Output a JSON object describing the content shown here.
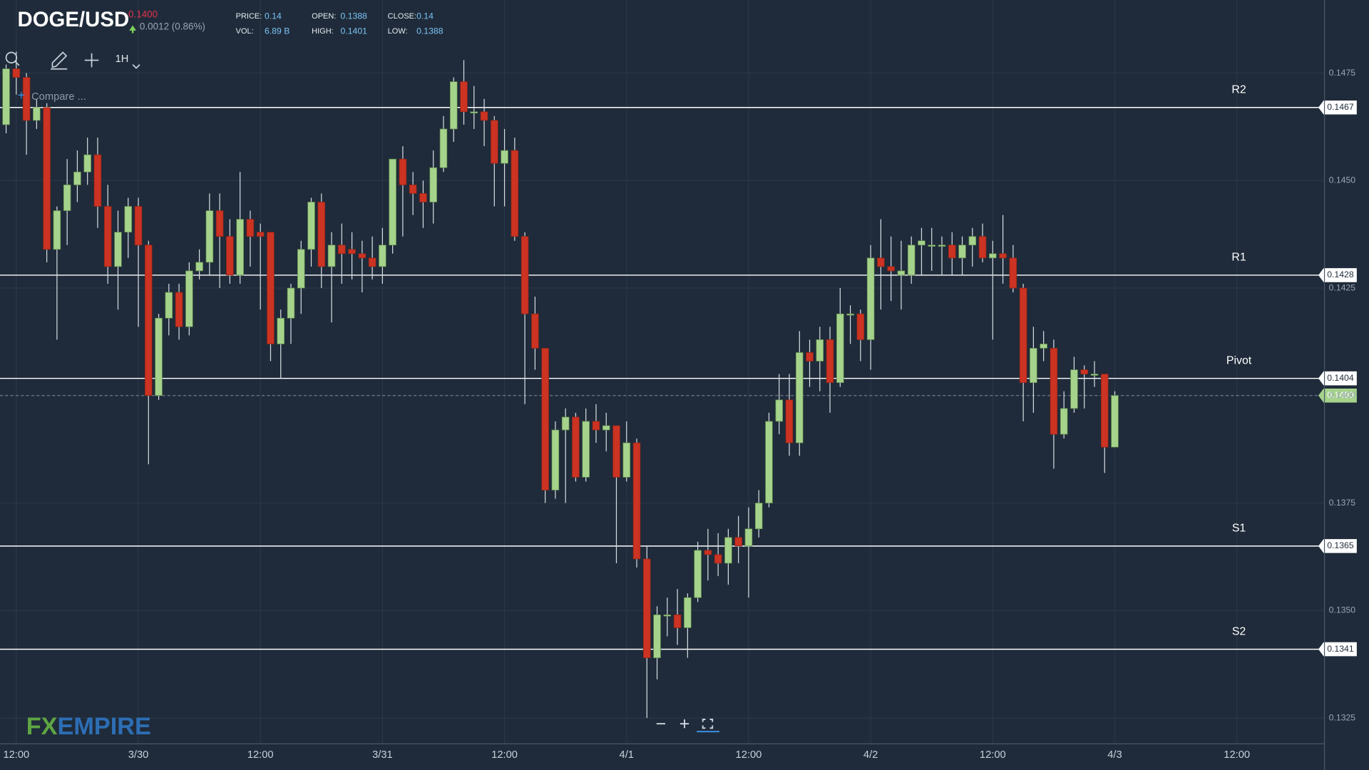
{
  "chart_data": {
    "type": "candlestick",
    "title": "DOGE/USD",
    "header": {
      "price": "0.1400",
      "change": "0.0012 (0.86%)",
      "stats": [
        {
          "label": "PRICE:",
          "value": "0.14"
        },
        {
          "label": "OPEN:",
          "value": "0.1388"
        },
        {
          "label": "CLOSE:",
          "value": "0.14"
        },
        {
          "label": "VOL:",
          "value": "6.89 B"
        },
        {
          "label": "HIGH:",
          "value": "0.1401"
        },
        {
          "label": "LOW:",
          "value": "0.1388"
        }
      ]
    },
    "toolbar": {
      "interval": "1H",
      "compare": "Compare ..."
    },
    "logo": {
      "first": "FX",
      "second": "EMPIRE"
    },
    "up_color": "#a6d38c",
    "down_color": "#cc3322",
    "categories": [
      null,
      "12:00",
      null,
      null,
      null,
      null,
      null,
      null,
      null,
      null,
      null,
      null,
      null,
      "3/30",
      null,
      null,
      null,
      null,
      null,
      null,
      null,
      null,
      null,
      null,
      null,
      "12:00",
      null,
      null,
      null,
      null,
      null,
      null,
      null,
      null,
      null,
      null,
      null,
      "3/31",
      null,
      null,
      null,
      null,
      null,
      null,
      null,
      null,
      null,
      null,
      null,
      "12:00",
      null,
      null,
      null,
      null,
      null,
      null,
      null,
      null,
      null,
      null,
      null,
      "4/1",
      null,
      null,
      null,
      null,
      null,
      null,
      null,
      null,
      null,
      null,
      null,
      "12:00",
      null,
      null,
      null,
      null,
      null,
      null,
      null,
      null,
      null,
      null,
      null,
      "4/2",
      null,
      null,
      null,
      null,
      null,
      null,
      null,
      null,
      null,
      null,
      null,
      "12:00",
      null,
      null,
      null,
      null,
      null,
      null,
      null,
      null,
      null,
      null,
      null,
      "4/3",
      null,
      null,
      null,
      null,
      null,
      null,
      null,
      null,
      null,
      null,
      null,
      "12:00"
    ],
    "open": [
      0.1463,
      0.1476,
      0.1474,
      0.1464,
      0.1467,
      0.1434,
      0.1443,
      0.1449,
      0.1452,
      0.1456,
      0.1444,
      0.143,
      0.1438,
      0.1444,
      0.1435,
      0.14,
      0.1418,
      0.1424,
      0.1416,
      0.1429,
      0.1431,
      0.1443,
      0.1437,
      0.1428,
      0.1441,
      0.1438,
      0.1438,
      0.1412,
      0.1418,
      0.1425,
      0.1434,
      0.1445,
      0.143,
      0.1435,
      0.1434,
      0.1433,
      0.1432,
      0.143,
      0.1435,
      0.1455,
      0.1449,
      0.1447,
      0.1445,
      0.1453,
      0.1462,
      0.1473,
      0.1466,
      0.1466,
      0.1464,
      0.1454,
      0.1457,
      0.1437,
      0.1419,
      0.1411,
      0.1378,
      0.1392,
      0.1395,
      0.1381,
      0.1394,
      0.1392,
      0.1393,
      0.1381,
      0.1389,
      0.1362,
      0.1339,
      0.1349,
      0.1349,
      0.1346,
      0.1353,
      0.1364,
      0.1363,
      0.1361,
      0.1367,
      0.1365,
      0.1369,
      0.1375,
      0.1394,
      0.1399,
      0.1389,
      0.141,
      0.1408,
      0.1413,
      0.1403,
      0.1419,
      0.1419,
      0.1413,
      0.1432,
      0.143,
      0.1428,
      0.1428,
      0.1435,
      0.1435,
      0.1435,
      0.1435,
      0.1432,
      0.1435,
      0.1437,
      0.1432,
      0.1433,
      0.1432,
      0.1425,
      0.1403,
      0.1411,
      0.1411,
      0.1391,
      0.1397,
      0.1406,
      0.1405,
      0.1405,
      0.1388,
      null,
      null,
      null,
      null,
      null,
      null,
      null,
      null,
      null,
      null,
      null,
      null
    ],
    "high": [
      0.1477,
      0.148,
      0.1475,
      0.1469,
      0.1468,
      0.1444,
      0.1455,
      0.1457,
      0.146,
      0.146,
      0.1449,
      0.1443,
      0.1446,
      0.1446,
      0.1436,
      0.1419,
      0.1426,
      0.1426,
      0.1431,
      0.1434,
      0.1447,
      0.1447,
      0.1441,
      0.1452,
      0.1443,
      0.144,
      0.1438,
      0.142,
      0.1426,
      0.1436,
      0.1446,
      0.1447,
      0.1438,
      0.144,
      0.1438,
      0.1436,
      0.1437,
      0.1439,
      0.1455,
      0.1458,
      0.1452,
      0.145,
      0.1457,
      0.1465,
      0.1474,
      0.1478,
      0.1472,
      0.1469,
      0.1465,
      0.1462,
      0.146,
      0.1438,
      0.1423,
      0.1411,
      0.1394,
      0.1397,
      0.1396,
      0.1397,
      0.1398,
      0.1396,
      0.1393,
      0.1394,
      0.139,
      0.1365,
      0.1351,
      0.1353,
      0.1355,
      0.1354,
      0.1366,
      0.1369,
      0.1368,
      0.1369,
      0.1372,
      0.1374,
      0.1378,
      0.1396,
      0.1405,
      0.1405,
      0.1415,
      0.1413,
      0.1416,
      0.1416,
      0.1425,
      0.1421,
      0.142,
      0.1435,
      0.1441,
      0.1437,
      0.1436,
      0.1437,
      0.1439,
      0.1439,
      0.1437,
      0.1438,
      0.1437,
      0.1439,
      0.144,
      0.1436,
      0.1442,
      0.1435,
      0.1426,
      0.1416,
      0.1415,
      0.1413,
      0.1401,
      0.1409,
      0.1407,
      0.1408,
      0.1405,
      0.1401,
      null,
      null,
      null,
      null,
      null,
      null,
      null,
      null,
      null,
      null,
      null,
      null
    ],
    "low": [
      0.1461,
      0.147,
      0.1456,
      0.1462,
      0.1431,
      0.1413,
      0.1435,
      0.1445,
      0.1449,
      0.1439,
      0.1426,
      0.142,
      0.1432,
      0.1416,
      0.1384,
      0.1399,
      0.1414,
      0.1413,
      0.1414,
      0.1427,
      0.1428,
      0.1425,
      0.1426,
      0.1426,
      0.143,
      0.142,
      0.1408,
      0.1404,
      0.1412,
      0.1419,
      0.143,
      0.1425,
      0.1417,
      0.1426,
      0.1427,
      0.1424,
      0.1427,
      0.1426,
      0.1433,
      0.1437,
      0.1442,
      0.1439,
      0.144,
      0.1452,
      0.1459,
      0.1463,
      0.1462,
      0.1458,
      0.1444,
      0.1444,
      0.1436,
      0.1398,
      0.1406,
      0.1375,
      0.1376,
      0.1375,
      0.138,
      0.138,
      0.1389,
      0.1387,
      0.1361,
      0.138,
      0.136,
      0.1325,
      0.1334,
      0.1344,
      0.1342,
      0.1339,
      0.1352,
      0.1357,
      0.1358,
      0.1356,
      0.1361,
      0.1353,
      0.1367,
      0.1374,
      0.1391,
      0.1386,
      0.1386,
      0.1402,
      0.1401,
      0.1396,
      0.1402,
      0.1412,
      0.1408,
      0.1406,
      0.142,
      0.1422,
      0.142,
      0.1426,
      0.1428,
      0.1429,
      0.1428,
      0.1428,
      0.1428,
      0.143,
      0.1431,
      0.1413,
      0.1426,
      0.1424,
      0.1394,
      0.1396,
      0.1408,
      0.1383,
      0.139,
      0.1396,
      0.1397,
      0.1402,
      0.1382,
      0.1388,
      null,
      null,
      null,
      null,
      null,
      null,
      null,
      null,
      null,
      null,
      null,
      null
    ],
    "close": [
      0.1476,
      0.1474,
      0.1464,
      0.1467,
      0.1434,
      0.1443,
      0.1449,
      0.1452,
      0.1456,
      0.1444,
      0.143,
      0.1438,
      0.1444,
      0.1435,
      0.14,
      0.1418,
      0.1424,
      0.1416,
      0.1429,
      0.1431,
      0.1443,
      0.1437,
      0.1428,
      0.1441,
      0.1437,
      0.1437,
      0.1412,
      0.1418,
      0.1425,
      0.1434,
      0.1445,
      0.143,
      0.1435,
      0.1433,
      0.1433,
      0.1432,
      0.143,
      0.1435,
      0.1455,
      0.1449,
      0.1447,
      0.1445,
      0.1453,
      0.1462,
      0.1473,
      0.1466,
      0.1466,
      0.1464,
      0.1454,
      0.1457,
      0.1437,
      0.1419,
      0.1411,
      0.1378,
      0.1392,
      0.1395,
      0.1381,
      0.1394,
      0.1392,
      0.1393,
      0.1381,
      0.1389,
      0.1362,
      0.1339,
      0.1349,
      0.1349,
      0.1346,
      0.1353,
      0.1364,
      0.1363,
      0.1361,
      0.1367,
      0.1365,
      0.1369,
      0.1375,
      0.1394,
      0.1399,
      0.1389,
      0.141,
      0.1408,
      0.1413,
      0.1403,
      0.1419,
      0.1419,
      0.1413,
      0.1432,
      0.143,
      0.1429,
      0.1429,
      0.1435,
      0.1436,
      0.1435,
      0.1435,
      0.1432,
      0.1435,
      0.1437,
      0.1432,
      0.1433,
      0.1432,
      0.1425,
      0.1403,
      0.1411,
      0.1412,
      0.1391,
      0.1397,
      0.1406,
      0.1405,
      0.1405,
      0.1388,
      0.14,
      null,
      null,
      null,
      null,
      null,
      null,
      null,
      null,
      null,
      null,
      null,
      null
    ],
    "ylim": [
      0.1319,
      0.1492
    ],
    "yticks": [
      0.1325,
      {
        "value": 0.135,
        "label": "0.1350"
      },
      0.1375,
      {
        "value": 0.14,
        "label": "0.1400"
      },
      0.1425,
      {
        "value": 0.145,
        "label": "0.1450"
      },
      0.1475
    ],
    "levels": [
      {
        "name": "R2",
        "value": 0.1467
      },
      {
        "name": "R1",
        "value": 0.1428
      },
      {
        "name": "Pivot",
        "value": 0.1404
      },
      {
        "name": "S1",
        "value": 0.1365
      },
      {
        "name": "S2",
        "value": 0.1341
      }
    ],
    "current": {
      "value": 0.14,
      "label": "0.1400"
    },
    "grid": true
  }
}
